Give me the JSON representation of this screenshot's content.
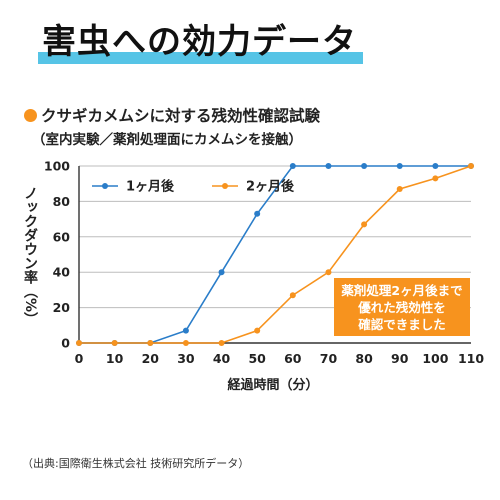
{
  "header": {
    "title": "害虫への効力データ"
  },
  "chart_heading": {
    "title": "クサギカメムシに対する残効性確認試験",
    "subtitle": "（室内実験／薬剤処理面にカメムシを接触）"
  },
  "note": {
    "lines": [
      "薬剤処理2ヶ月後まで",
      "優れた残効性を",
      "確認できました"
    ]
  },
  "source": "（出典:国際衛生株式会社 技術研究所データ）",
  "colors": {
    "series1": "#2a7dc9",
    "series2": "#f7931e",
    "accent_band": "#56c4e6"
  },
  "chart_data": {
    "type": "line",
    "title": "クサギカメムシに対する残効性確認試験",
    "xlabel": "経過時間（分）",
    "ylabel": "ノックダウン率（%）",
    "x": [
      0,
      10,
      20,
      30,
      40,
      50,
      60,
      70,
      80,
      90,
      100,
      110
    ],
    "xticks": [
      "0",
      "10",
      "20",
      "30",
      "40",
      "50",
      "60",
      "70",
      "80",
      "90",
      "100",
      "110"
    ],
    "yticks": [
      "0",
      "20",
      "40",
      "60",
      "80",
      "100"
    ],
    "xlim": [
      0,
      110
    ],
    "ylim": [
      0,
      100
    ],
    "grid": "horizontal",
    "legend_position": "top-left",
    "series": [
      {
        "name": "1ヶ月後",
        "color": "#2a7dc9",
        "values": [
          0,
          0,
          0,
          7,
          40,
          73,
          100,
          100,
          100,
          100,
          100,
          100
        ]
      },
      {
        "name": "2ヶ月後",
        "color": "#f7931e",
        "values": [
          0,
          0,
          0,
          0,
          0,
          7,
          27,
          40,
          67,
          87,
          93,
          100
        ]
      }
    ]
  }
}
